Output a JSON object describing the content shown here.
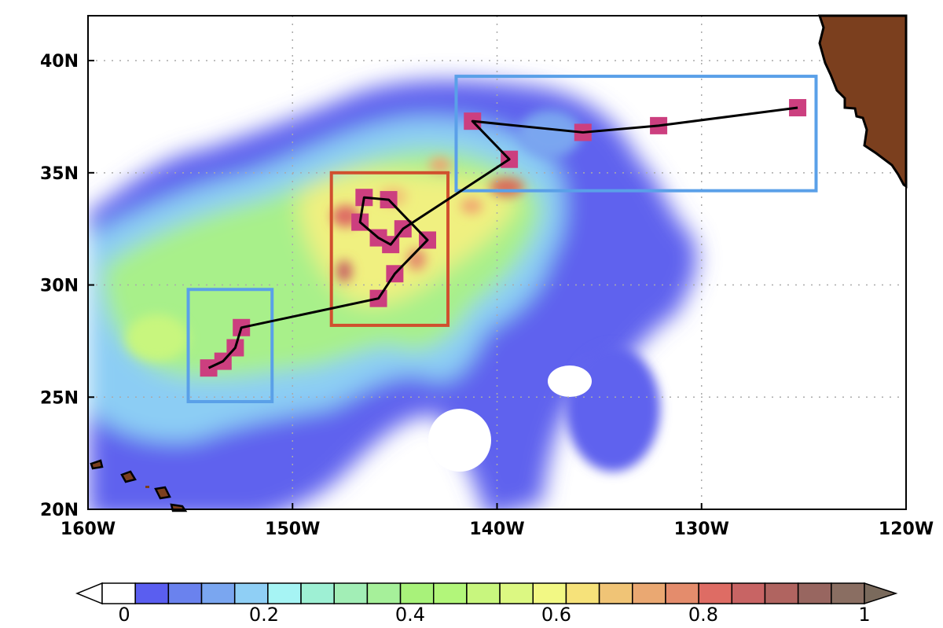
{
  "map": {
    "type": "contour-map-with-track",
    "extent": {
      "lon": [
        -160,
        -120
      ],
      "lat": [
        20,
        42
      ]
    },
    "x_tick_labels": [
      "160W",
      "150W",
      "140W",
      "130W",
      "120W"
    ],
    "x_tick_values": [
      -160,
      -150,
      -140,
      -130,
      -120
    ],
    "y_tick_labels": [
      "20N",
      "25N",
      "30N",
      "35N",
      "40N"
    ],
    "y_tick_values": [
      20,
      25,
      30,
      35,
      40
    ],
    "grid": "dotted",
    "land_color": "#7b3f1e",
    "track_color": "#000000",
    "marker_color": "#cc3f7f",
    "track": [
      [
        -154.1,
        26.3
      ],
      [
        -153.4,
        26.6
      ],
      [
        -152.8,
        27.2
      ],
      [
        -152.5,
        28.1
      ],
      [
        -145.8,
        29.4
      ],
      [
        -145.0,
        30.5
      ],
      [
        -143.4,
        32.0
      ],
      [
        -145.3,
        33.8
      ],
      [
        -146.5,
        33.9
      ],
      [
        -146.7,
        32.8
      ],
      [
        -145.8,
        32.1
      ],
      [
        -145.2,
        31.8
      ],
      [
        -144.6,
        32.5
      ],
      [
        -139.4,
        35.6
      ],
      [
        -141.2,
        37.3
      ],
      [
        -135.8,
        36.8
      ],
      [
        -132.1,
        37.1
      ],
      [
        -125.3,
        37.9
      ]
    ],
    "boxes": [
      {
        "color": "#5aa0e8",
        "lon": [
          -155.1,
          -151.0
        ],
        "lat": [
          24.8,
          29.8
        ]
      },
      {
        "color": "#d0502e",
        "lon": [
          -148.1,
          -142.4
        ],
        "lat": [
          28.2,
          35.0
        ]
      },
      {
        "color": "#5aa0e8",
        "lon": [
          -142.0,
          -124.4
        ],
        "lat": [
          34.2,
          39.3
        ]
      }
    ]
  },
  "colorbar": {
    "labels": [
      "0",
      "0.2",
      "0.4",
      "0.6",
      "0.8",
      "1"
    ],
    "label_values": [
      0,
      0.2,
      0.4,
      0.6,
      0.8,
      1
    ],
    "under_color": "#ffffff",
    "over_color": "#7a6a5c",
    "colors": [
      "#ffffff",
      "#5a5ef0",
      "#6a82ee",
      "#7aa6f0",
      "#8fcff5",
      "#a6f4f4",
      "#9ef0d4",
      "#a2eeb6",
      "#a6f09a",
      "#a8f27a",
      "#b2f67a",
      "#c8f67e",
      "#dcf882",
      "#f2f884",
      "#f6e27a",
      "#f0c476",
      "#eaa872",
      "#e48c6c",
      "#de6c64",
      "#c86464",
      "#b06460",
      "#986660",
      "#8a6e62"
    ]
  }
}
